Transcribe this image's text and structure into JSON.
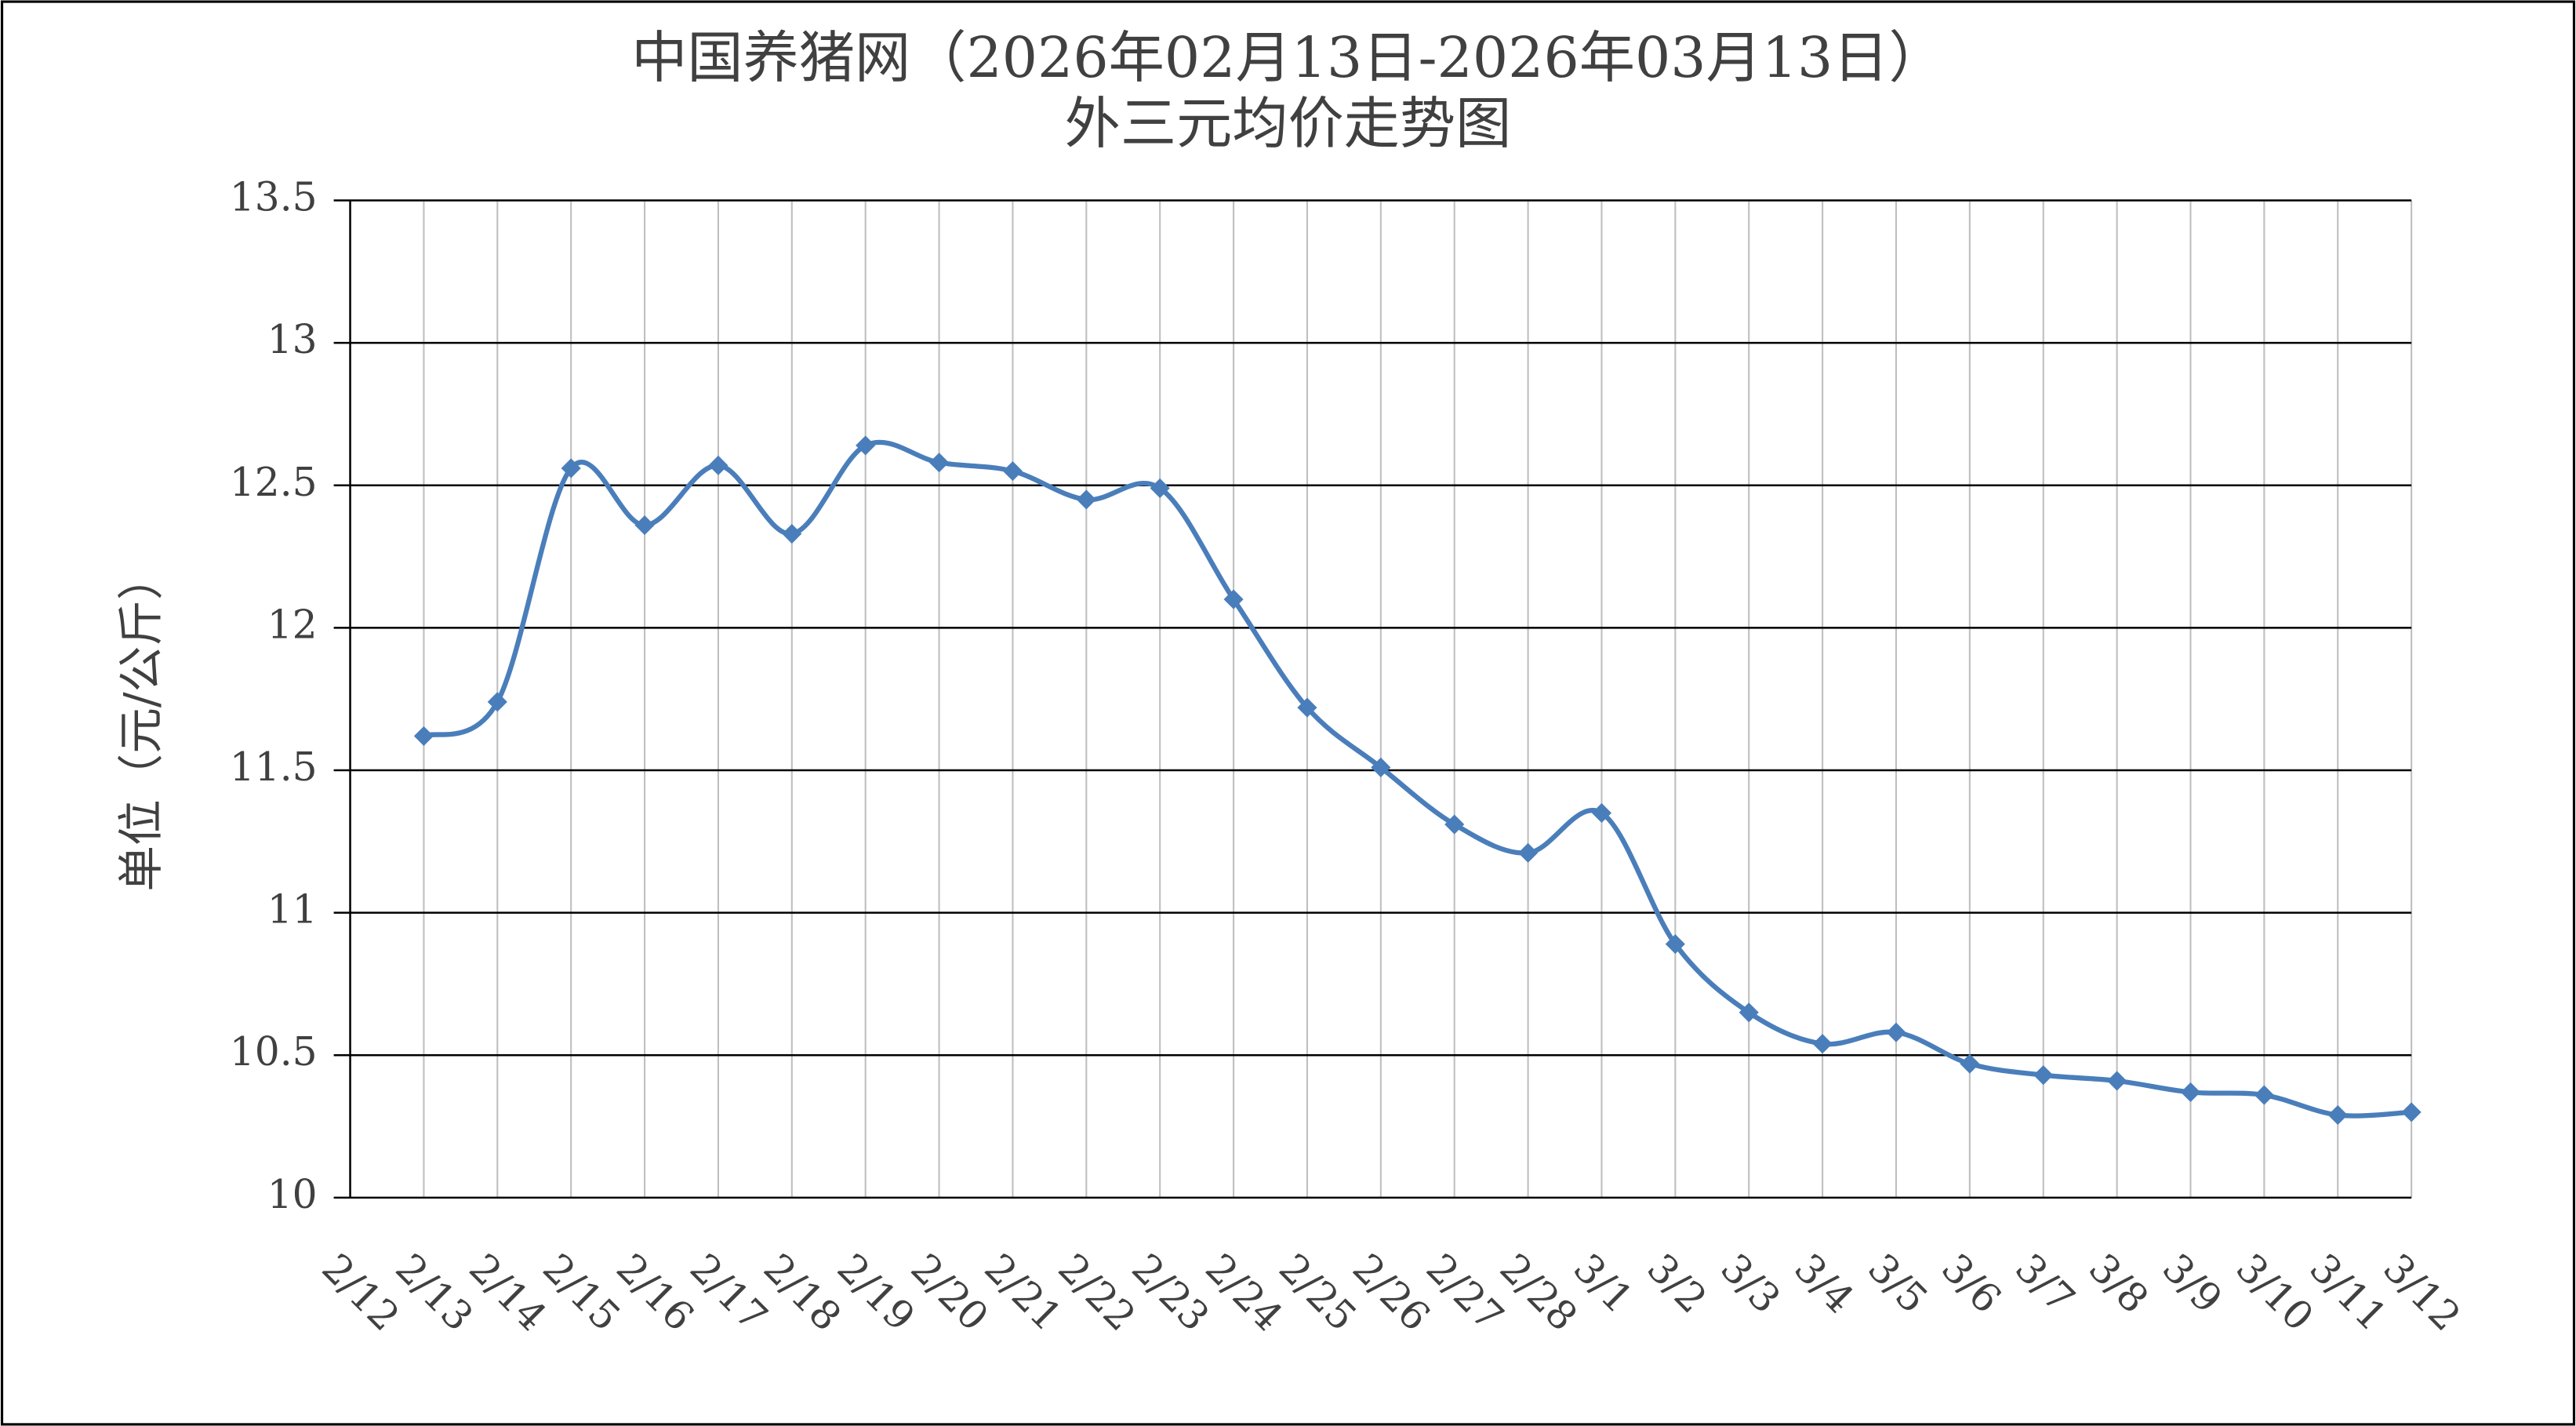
{
  "chart_data": {
    "type": "line",
    "title": "中国养猪网（2026年02月13日-2026年03月13日）",
    "subtitle": "外三元均价走势图",
    "y_label": "单位（元/公斤）",
    "categories": [
      "2/12",
      "2/13",
      "2/14",
      "2/15",
      "2/16",
      "2/17",
      "2/18",
      "2/19",
      "2/20",
      "2/21",
      "2/22",
      "2/23",
      "2/24",
      "2/25",
      "2/26",
      "2/27",
      "2/28",
      "3/1",
      "3/2",
      "3/3",
      "3/4",
      "3/5",
      "3/6",
      "3/7",
      "3/8",
      "3/9",
      "3/10",
      "3/11",
      "3/12"
    ],
    "series": [
      {
        "name": "外三元均价",
        "color": "#4a7ebb",
        "values": [
          null,
          11.62,
          11.74,
          12.56,
          12.36,
          12.57,
          12.33,
          12.64,
          12.58,
          12.55,
          12.45,
          12.49,
          12.1,
          11.72,
          11.51,
          11.31,
          11.21,
          11.35,
          10.89,
          10.65,
          10.54,
          10.58,
          10.47,
          10.43,
          10.41,
          10.37,
          10.36,
          10.29,
          10.3
        ]
      }
    ],
    "ylim": [
      10,
      13.5
    ],
    "yticks": [
      10,
      10.5,
      11,
      11.5,
      12,
      12.5,
      13,
      13.5
    ],
    "grid": true
  }
}
